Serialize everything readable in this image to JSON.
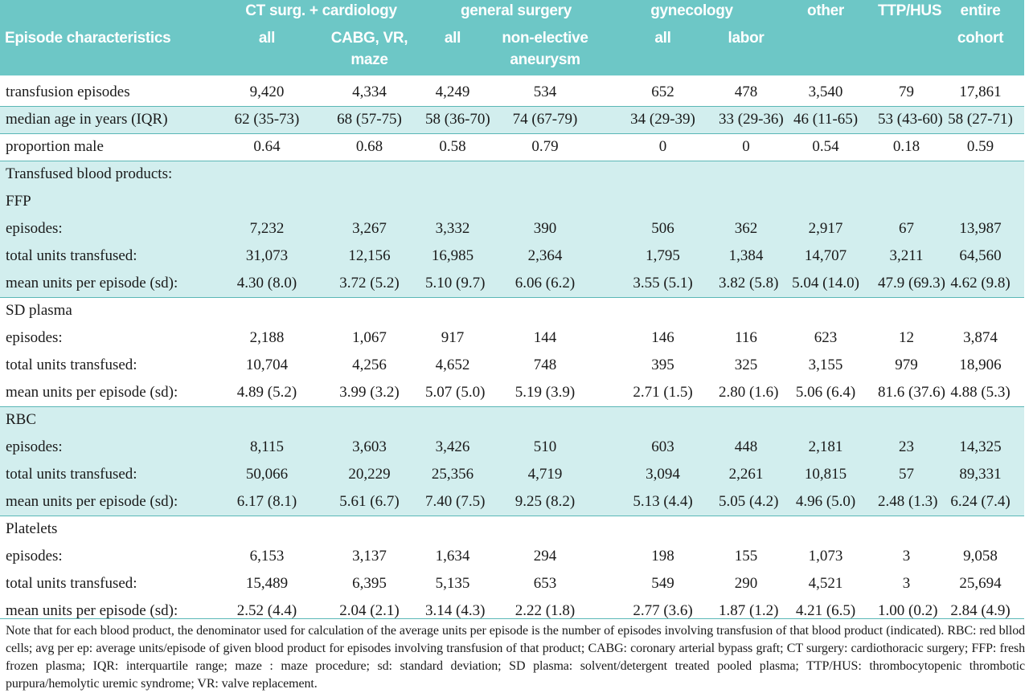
{
  "header": {
    "row_label": "Episode characteristics",
    "groups": {
      "ct": "CT surg. + cardiology",
      "general": "general surgery",
      "gyn": "gynecology",
      "other": "other",
      "ttp": "TTP/HUS",
      "entire_1": "entire",
      "entire_2": "cohort"
    },
    "sub": {
      "ct_all": "all",
      "ct_cabg_1": "CABG, VR,",
      "ct_cabg_2": "maze",
      "gen_all": "all",
      "gen_ne_1": "non-elective",
      "gen_ne_2": "aneurysm",
      "gyn_all": "all",
      "gyn_labor": "labor"
    }
  },
  "rows": {
    "transfusion_episodes": {
      "label": "transfusion episodes",
      "values": [
        "9,420",
        "4,334",
        "4,249",
        "534",
        "652",
        "478",
        "3,540",
        "79",
        "17,861"
      ]
    },
    "median_age": {
      "label": "median age in years (IQR)",
      "values": [
        "62 (35-73)",
        "68 (57-75)",
        "58 (36-70)",
        "74 (67-79)",
        "34 (29-39)",
        "33 (29-36)",
        "46 (11-65)",
        "53 (43-60)",
        "58 (27-71)"
      ]
    },
    "proportion_male": {
      "label": "proportion male",
      "values": [
        "0.64",
        "0.68",
        "0.58",
        "0.79",
        "0",
        "0",
        "0.54",
        "0.18",
        "0.59"
      ]
    }
  },
  "section_title": "Transfused blood products:",
  "products": [
    {
      "name": "FFP",
      "episodes": {
        "label": "episodes:",
        "values": [
          "7,232",
          "3,267",
          "3,332",
          "390",
          "506",
          "362",
          "2,917",
          "67",
          "13,987"
        ]
      },
      "total": {
        "label": "total units transfused:",
        "values": [
          "31,073",
          "12,156",
          "16,985",
          "2,364",
          "1,795",
          "1,384",
          "14,707",
          "3,211",
          "64,560"
        ]
      },
      "mean": {
        "label": "mean units per episode (sd):",
        "values": [
          "4.30 (8.0)",
          "3.72 (5.2)",
          "5.10 (9.7)",
          "6.06 (6.2)",
          "3.55 (5.1)",
          "3.82 (5.8)",
          "5.04 (14.0)",
          "47.9 (69.3)",
          "4.62 (9.8)"
        ]
      }
    },
    {
      "name": "SD plasma",
      "episodes": {
        "label": "episodes:",
        "values": [
          "2,188",
          "1,067",
          "917",
          "144",
          "146",
          "116",
          "623",
          "12",
          "3,874"
        ]
      },
      "total": {
        "label": "total units transfused:",
        "values": [
          "10,704",
          "4,256",
          "4,652",
          "748",
          "395",
          "325",
          "3,155",
          "979",
          "18,906"
        ]
      },
      "mean": {
        "label": "mean units per episode (sd):",
        "values": [
          "4.89 (5.2)",
          "3.99 (3.2)",
          "5.07 (5.0)",
          "5.19 (3.9)",
          "2.71 (1.5)",
          "2.80 (1.6)",
          "5.06 (6.4)",
          "81.6 (37.6)",
          "4.88 (5.3)"
        ]
      }
    },
    {
      "name": "RBC",
      "episodes": {
        "label": "episodes:",
        "values": [
          "8,115",
          "3,603",
          "3,426",
          "510",
          "603",
          "448",
          "2,181",
          "23",
          "14,325"
        ]
      },
      "total": {
        "label": "total units transfused:",
        "values": [
          "50,066",
          "20,229",
          "25,356",
          "4,719",
          "3,094",
          "2,261",
          "10,815",
          "57",
          "89,331"
        ]
      },
      "mean": {
        "label": "mean units per episode (sd):",
        "values": [
          "6.17 (8.1)",
          "5.61 (6.7)",
          "7.40 (7.5)",
          "9.25 (8.2)",
          "5.13 (4.4)",
          "5.05 (4.2)",
          "4.96 (5.0)",
          "2.48 (1.3)",
          "6.24 (7.4)"
        ]
      }
    },
    {
      "name": "Platelets",
      "episodes": {
        "label": "episodes:",
        "values": [
          "6,153",
          "3,137",
          "1,634",
          "294",
          "198",
          "155",
          "1,073",
          "3",
          "9,058"
        ]
      },
      "total": {
        "label": "total units transfused:",
        "values": [
          "15,489",
          "6,395",
          "5,135",
          "653",
          "549",
          "290",
          "4,521",
          "3",
          "25,694"
        ]
      },
      "mean": {
        "label": "mean units per episode (sd):",
        "values": [
          "2.52 (4.4)",
          "2.04 (2.1)",
          "3.14 (4.3)",
          "2.22 (1.8)",
          "2.77 (3.6)",
          "1.87 (1.2)",
          "4.21 (6.5)",
          "1.00 (0.2)",
          "2.84 (4.9)"
        ]
      }
    }
  ],
  "footnote": "Note that for each blood product, the denominator used for calculation of the average units per episode is the number of episodes involving transfusion of that blood product (indicated). RBC: red bllod cells; avg per ep: average units/episode of given blood product for episodes involving transfusion of that product; CABG: coronary arterial bypass graft; CT surgery: cardiothoracic surgery; FFP: fresh frozen plasma; IQR: interquartile range; maze : maze procedure; sd: standard deviation; SD plasma: solvent/detergent treated pooled plasma; TTP/HUS: thrombocytopenic thrombotic purpura/hemolytic uremic syndrome; VR: valve replacement.",
  "colors": {
    "header_bg": "#6dc7c6",
    "shade_bg": "#d2eeee",
    "rule": "#5ab7b6"
  }
}
